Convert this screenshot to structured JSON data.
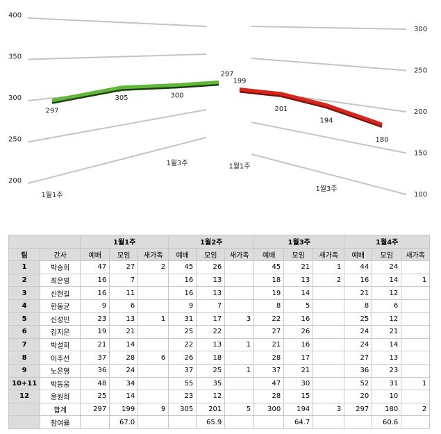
{
  "chart_data": [
    {
      "type": "line",
      "categories": [
        "1월1주",
        null,
        "1월3주",
        null
      ],
      "series": [
        {
          "color": "#5fb83a",
          "values": [
            297,
            305,
            300,
            297
          ]
        }
      ],
      "ylim": [
        200,
        400
      ],
      "yticks": [
        200,
        250,
        300,
        350,
        400
      ],
      "axis_side": "left"
    },
    {
      "type": "line",
      "categories": [
        "1월1주",
        null,
        "1월3주",
        null
      ],
      "series": [
        {
          "color": "#d9261c",
          "values": [
            199,
            201,
            194,
            180
          ]
        }
      ],
      "ylim": [
        100,
        300
      ],
      "yticks": [
        100,
        150,
        200,
        250,
        300
      ],
      "axis_side": "right"
    }
  ],
  "table": {
    "weeks": [
      "1월1주",
      "1월2주",
      "1월3주",
      "1월4주"
    ],
    "columns": [
      "팀",
      "간사",
      "예배",
      "모임",
      "새가족",
      "예배",
      "모임",
      "새가족",
      "예배",
      "모임",
      "새가족",
      "예배",
      "모임",
      "새가족"
    ],
    "rows": [
      [
        "1",
        "박송희",
        47,
        27,
        2,
        45,
        26,
        null,
        45,
        21,
        1,
        44,
        24,
        null
      ],
      [
        "2",
        "최은영",
        16,
        7,
        null,
        16,
        13,
        null,
        18,
        13,
        2,
        16,
        14,
        1
      ],
      [
        "3",
        "신현길",
        16,
        11,
        null,
        16,
        13,
        null,
        19,
        14,
        null,
        21,
        12,
        null
      ],
      [
        "4",
        "한동균",
        9,
        6,
        null,
        9,
        7,
        null,
        8,
        5,
        null,
        8,
        6,
        null
      ],
      [
        "5",
        "신성민",
        23,
        13,
        1,
        31,
        17,
        3,
        22,
        16,
        null,
        25,
        12,
        null
      ],
      [
        "6",
        "김지은",
        19,
        21,
        null,
        25,
        22,
        null,
        27,
        26,
        null,
        24,
        21,
        null
      ],
      [
        "7",
        "박설희",
        21,
        14,
        null,
        22,
        13,
        1,
        21,
        16,
        null,
        24,
        14,
        null
      ],
      [
        "8",
        "이주선",
        37,
        28,
        6,
        26,
        18,
        null,
        28,
        17,
        null,
        27,
        13,
        null
      ],
      [
        "9",
        "노은영",
        36,
        24,
        null,
        37,
        25,
        1,
        37,
        21,
        null,
        36,
        23,
        null
      ],
      [
        "10+11",
        "박동웅",
        48,
        34,
        null,
        55,
        35,
        null,
        47,
        30,
        null,
        52,
        31,
        1
      ],
      [
        "12",
        "윤원희",
        25,
        14,
        null,
        23,
        12,
        null,
        28,
        15,
        null,
        20,
        10,
        null
      ],
      [
        null,
        "합계",
        297,
        199,
        9,
        305,
        201,
        5,
        300,
        194,
        3,
        297,
        180,
        2
      ],
      [
        null,
        "참여율",
        null,
        "67.0",
        null,
        null,
        "65.9",
        null,
        null,
        "64.7",
        null,
        null,
        "60.6",
        null
      ]
    ]
  }
}
